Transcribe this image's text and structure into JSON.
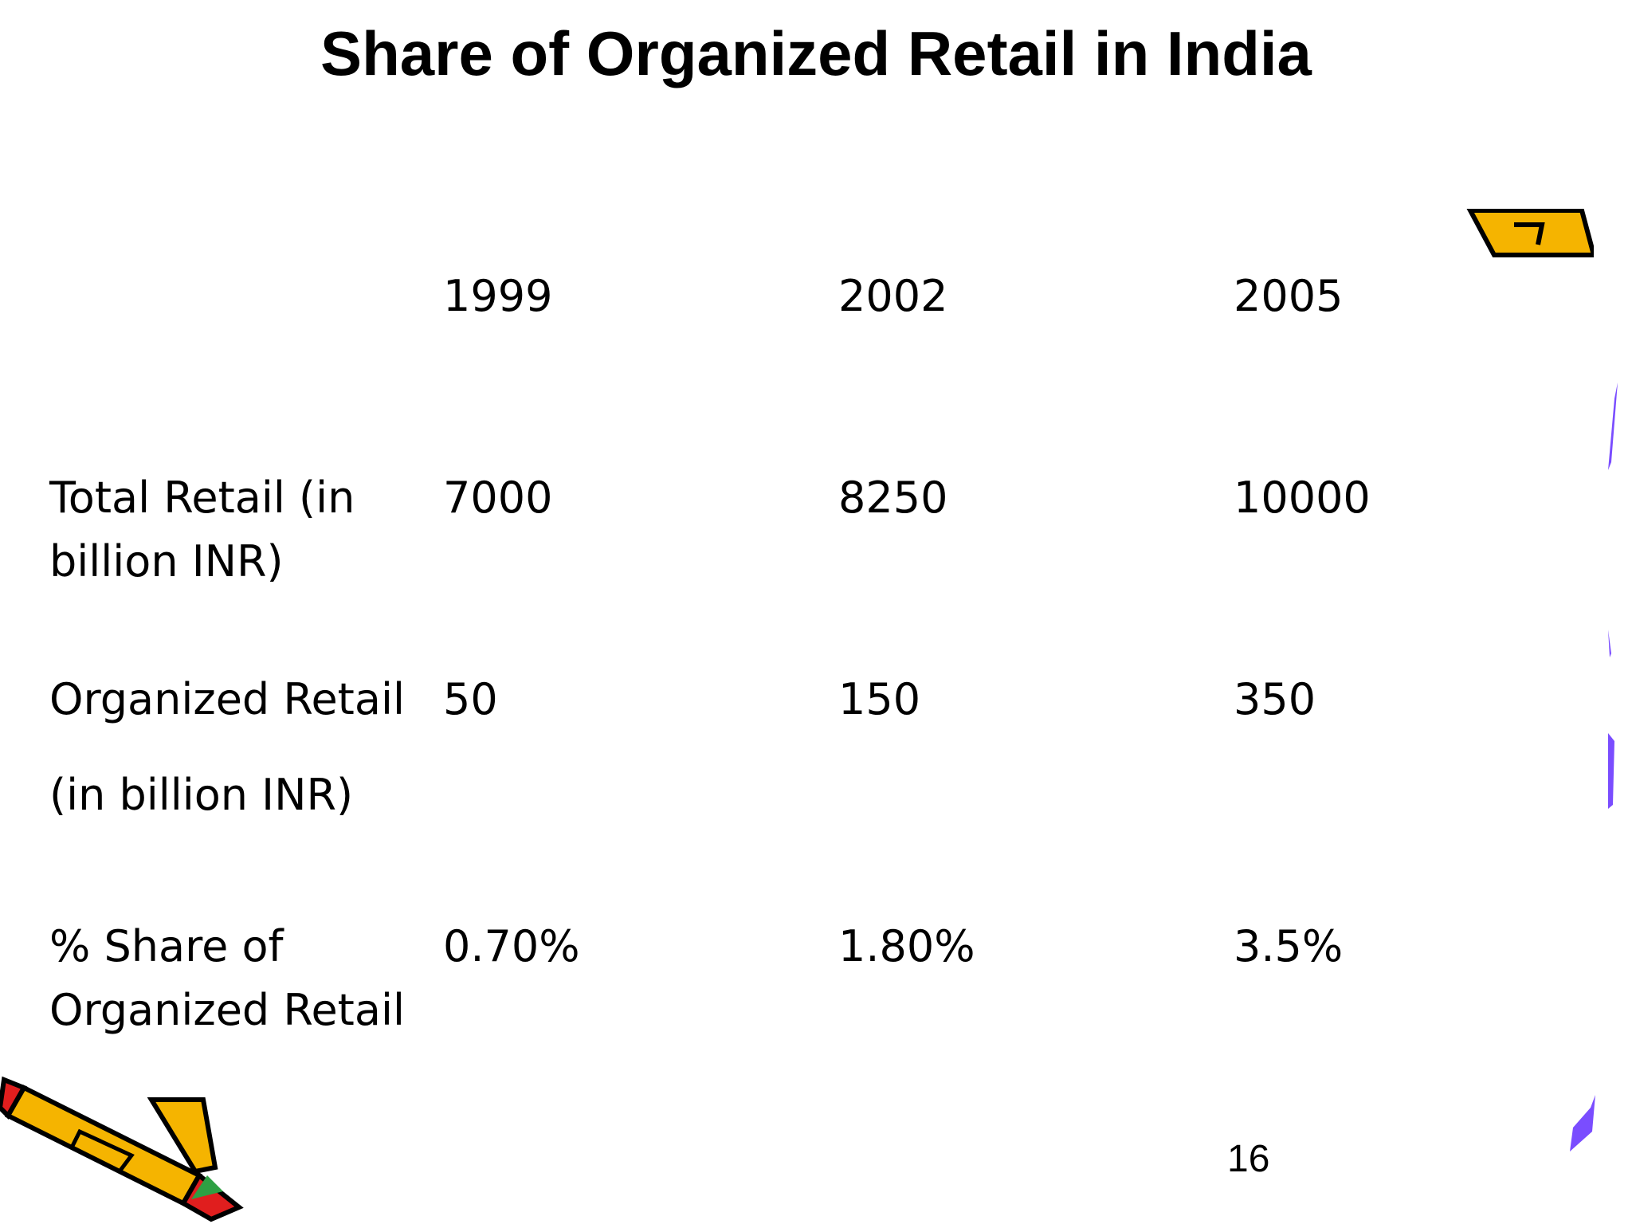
{
  "slide": {
    "title": "Share of Organized Retail in India",
    "page_number": "16"
  },
  "table": {
    "years": [
      "1999",
      "2002",
      "2005"
    ],
    "rows": [
      {
        "label_lines": [
          "Total Retail (in",
          "billion INR)"
        ],
        "values": [
          "7000",
          "8250",
          "10000"
        ]
      },
      {
        "label_lines": [
          "Organized Retail",
          "(in billion INR)"
        ],
        "values": [
          "50",
          "150",
          "350"
        ]
      },
      {
        "label_lines": [
          "% Share of",
          "Organized Retail"
        ],
        "values": [
          "0.70%",
          "1.80%",
          "3.5%"
        ]
      }
    ]
  },
  "decorations": {
    "pencil_colors": {
      "body": "#F5B400",
      "tip": "#E01E1E",
      "eraser": "#2EA043",
      "outline": "#000000"
    },
    "accent_color": "#7A4DFF"
  }
}
